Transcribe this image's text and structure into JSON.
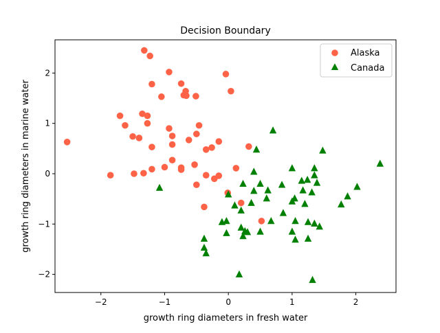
{
  "chart_data": {
    "type": "scatter",
    "title": "Decision Boundary",
    "xlabel": "growth ring diameters in fresh water",
    "ylabel": "growth ring diameters in marine water",
    "xlim": [
      -2.72,
      2.63
    ],
    "ylim": [
      -2.36,
      2.66
    ],
    "xticks": [
      -2,
      -1,
      0,
      1,
      2
    ],
    "yticks": [
      -2,
      -1,
      0,
      1,
      2
    ],
    "xtick_labels": [
      "−2",
      "−1",
      "0",
      "1",
      "2"
    ],
    "ytick_labels": [
      "−2",
      "−1",
      "0",
      "1",
      "2"
    ],
    "grid": false,
    "legend_position": "top-right",
    "series": [
      {
        "name": "Alaska",
        "marker": "circle",
        "color": "#ff6347",
        "points": [
          [
            -2.53,
            0.63
          ],
          [
            -1.85,
            -0.03
          ],
          [
            -1.7,
            1.15
          ],
          [
            -1.62,
            0.96
          ],
          [
            -1.5,
            0.74
          ],
          [
            -1.48,
            0.0
          ],
          [
            -1.4,
            0.71
          ],
          [
            -1.35,
            1.19
          ],
          [
            -1.33,
            0.01
          ],
          [
            -1.32,
            2.45
          ],
          [
            -1.27,
            1.15
          ],
          [
            -1.27,
            1.0
          ],
          [
            -1.23,
            2.34
          ],
          [
            -1.2,
            1.78
          ],
          [
            -1.2,
            0.53
          ],
          [
            -1.2,
            0.09
          ],
          [
            -1.05,
            1.53
          ],
          [
            -1.0,
            0.13
          ],
          [
            -0.93,
            2.02
          ],
          [
            -0.93,
            0.9
          ],
          [
            -0.88,
            0.75
          ],
          [
            -0.88,
            0.58
          ],
          [
            -0.88,
            0.27
          ],
          [
            -0.74,
            1.79
          ],
          [
            -0.74,
            0.12
          ],
          [
            -0.74,
            0.08
          ],
          [
            -0.7,
            1.56
          ],
          [
            -0.67,
            1.64
          ],
          [
            -0.66,
            1.55
          ],
          [
            -0.62,
            0.67
          ],
          [
            -0.53,
            0.18
          ],
          [
            -0.51,
            1.54
          ],
          [
            -0.5,
            0.79
          ],
          [
            -0.5,
            -0.22
          ],
          [
            -0.46,
            0.96
          ],
          [
            -0.38,
            -0.66
          ],
          [
            -0.35,
            0.48
          ],
          [
            -0.35,
            -0.03
          ],
          [
            -0.26,
            0.52
          ],
          [
            -0.22,
            -0.1
          ],
          [
            -0.15,
            0.64
          ],
          [
            -0.15,
            -0.04
          ],
          [
            -0.04,
            1.98
          ],
          [
            -0.01,
            -0.38
          ],
          [
            0.04,
            1.64
          ],
          [
            0.12,
            0.11
          ],
          [
            0.2,
            -0.58
          ],
          [
            0.32,
            0.54
          ],
          [
            0.52,
            -0.94
          ]
        ]
      },
      {
        "name": "Canada",
        "marker": "triangle",
        "color": "#008000",
        "points": [
          [
            -1.08,
            -0.28
          ],
          [
            -0.38,
            -1.29
          ],
          [
            -0.38,
            -1.47
          ],
          [
            -0.35,
            -1.58
          ],
          [
            -0.1,
            -0.96
          ],
          [
            -0.03,
            -0.94
          ],
          [
            -0.03,
            -1.18
          ],
          [
            0.0,
            -0.41
          ],
          [
            0.1,
            -0.63
          ],
          [
            0.17,
            -2.0
          ],
          [
            0.2,
            -0.73
          ],
          [
            0.2,
            -1.07
          ],
          [
            0.23,
            -1.24
          ],
          [
            0.23,
            -0.2
          ],
          [
            0.26,
            -1.14
          ],
          [
            0.3,
            -1.16
          ],
          [
            0.36,
            -0.58
          ],
          [
            0.4,
            0.04
          ],
          [
            0.4,
            -0.34
          ],
          [
            0.44,
            0.48
          ],
          [
            0.5,
            -0.2
          ],
          [
            0.5,
            -1.15
          ],
          [
            0.6,
            -0.49
          ],
          [
            0.62,
            -0.33
          ],
          [
            0.67,
            -0.94
          ],
          [
            0.7,
            0.86
          ],
          [
            0.84,
            -0.22
          ],
          [
            0.86,
            -0.78
          ],
          [
            1.0,
            0.11
          ],
          [
            1.0,
            -0.55
          ],
          [
            1.0,
            -1.15
          ],
          [
            1.04,
            -0.49
          ],
          [
            1.05,
            -0.94
          ],
          [
            1.05,
            -1.31
          ],
          [
            1.15,
            -0.14
          ],
          [
            1.17,
            -0.33
          ],
          [
            1.2,
            -0.6
          ],
          [
            1.24,
            -0.12
          ],
          [
            1.25,
            -0.96
          ],
          [
            1.25,
            -1.29
          ],
          [
            1.31,
            -0.37
          ],
          [
            1.32,
            -2.11
          ],
          [
            1.35,
            0.11
          ],
          [
            1.35,
            -0.03
          ],
          [
            1.35,
            -0.99
          ],
          [
            1.39,
            -0.18
          ],
          [
            1.43,
            -1.05
          ],
          [
            1.48,
            0.46
          ],
          [
            1.77,
            -0.61
          ],
          [
            1.87,
            -0.45
          ],
          [
            2.02,
            -0.26
          ],
          [
            2.38,
            0.2
          ]
        ]
      }
    ]
  }
}
